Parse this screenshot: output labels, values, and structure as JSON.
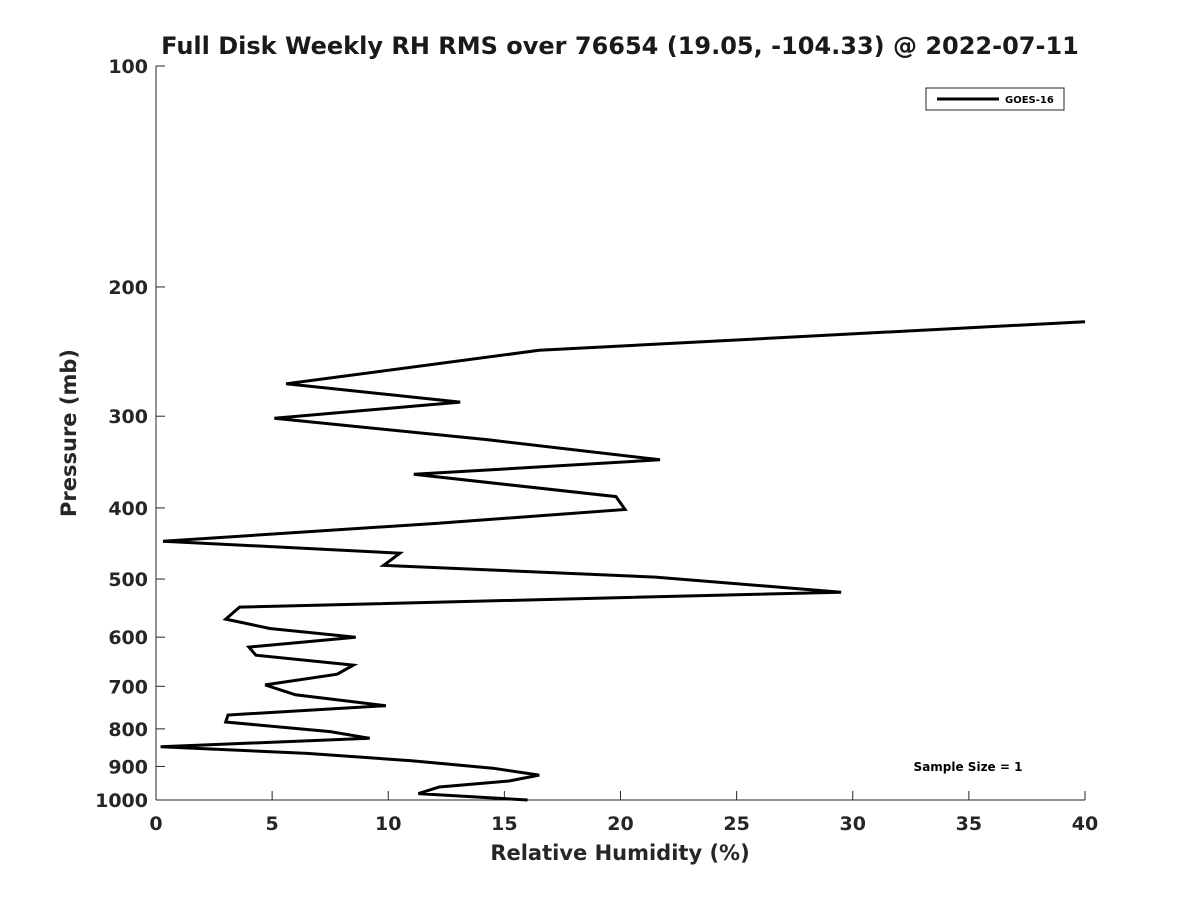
{
  "chart_data": {
    "type": "line",
    "title": "Full Disk Weekly RH RMS over 76654 (19.05, -104.33) @ 2022-07-11",
    "xlabel": "Relative Humidity (%)",
    "ylabel": "Pressure (mb)",
    "xlim": [
      0,
      40
    ],
    "ylim": [
      1000,
      100
    ],
    "yscale": "log",
    "y_reversed": true,
    "xticks": [
      0,
      5,
      10,
      15,
      20,
      25,
      30,
      35,
      40
    ],
    "yticks": [
      100,
      200,
      300,
      400,
      500,
      600,
      700,
      800,
      900,
      1000
    ],
    "grid": false,
    "legend": {
      "location": "top-right"
    },
    "annotation": "Sample Size = 1",
    "series": [
      {
        "name": "GOES-16",
        "color": "#000000",
        "points": [
          {
            "x": 40.0,
            "y": 223
          },
          {
            "x": 16.5,
            "y": 244
          },
          {
            "x": 5.6,
            "y": 271
          },
          {
            "x": 13.1,
            "y": 287
          },
          {
            "x": 5.1,
            "y": 302
          },
          {
            "x": 14.3,
            "y": 323
          },
          {
            "x": 21.7,
            "y": 344
          },
          {
            "x": 11.1,
            "y": 360
          },
          {
            "x": 19.8,
            "y": 386
          },
          {
            "x": 20.2,
            "y": 402
          },
          {
            "x": 12.0,
            "y": 420
          },
          {
            "x": 0.3,
            "y": 444
          },
          {
            "x": 10.5,
            "y": 461
          },
          {
            "x": 9.8,
            "y": 479
          },
          {
            "x": 21.5,
            "y": 497
          },
          {
            "x": 29.5,
            "y": 521
          },
          {
            "x": 3.6,
            "y": 546
          },
          {
            "x": 3.0,
            "y": 567
          },
          {
            "x": 4.9,
            "y": 584
          },
          {
            "x": 8.6,
            "y": 600
          },
          {
            "x": 4.0,
            "y": 619
          },
          {
            "x": 4.3,
            "y": 635
          },
          {
            "x": 8.5,
            "y": 655
          },
          {
            "x": 7.8,
            "y": 674
          },
          {
            "x": 4.7,
            "y": 697
          },
          {
            "x": 6.0,
            "y": 719
          },
          {
            "x": 9.9,
            "y": 744
          },
          {
            "x": 3.1,
            "y": 766
          },
          {
            "x": 3.0,
            "y": 783
          },
          {
            "x": 7.5,
            "y": 807
          },
          {
            "x": 9.2,
            "y": 824
          },
          {
            "x": 0.2,
            "y": 846
          },
          {
            "x": 6.5,
            "y": 864
          },
          {
            "x": 11.0,
            "y": 884
          },
          {
            "x": 14.5,
            "y": 905
          },
          {
            "x": 16.5,
            "y": 925
          },
          {
            "x": 15.2,
            "y": 942
          },
          {
            "x": 12.2,
            "y": 960
          },
          {
            "x": 11.3,
            "y": 980
          },
          {
            "x": 16.0,
            "y": 1000
          }
        ]
      }
    ]
  }
}
